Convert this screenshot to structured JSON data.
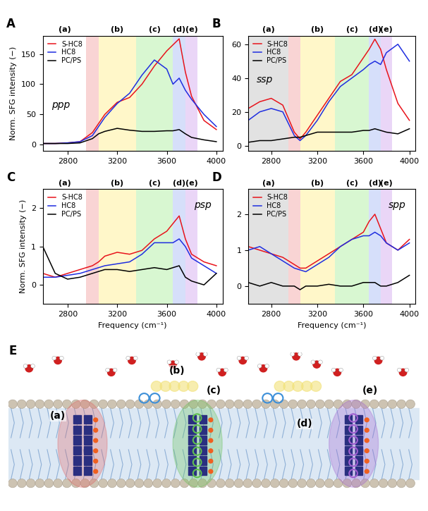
{
  "chart_data": [
    {
      "type": "line",
      "panel": "A",
      "annotation": "ppp",
      "ylabel": "Norm. SFG intensity (−)",
      "x": [
        2600,
        2700,
        2800,
        2900,
        3000,
        3050,
        3100,
        3200,
        3300,
        3400,
        3500,
        3600,
        3650,
        3700,
        3750,
        3800,
        3900,
        4000
      ],
      "series": [
        {
          "name": "S-HC8",
          "color": "#e8141c",
          "values": [
            2,
            2,
            3,
            5,
            20,
            35,
            50,
            70,
            78,
            100,
            130,
            155,
            165,
            175,
            120,
            80,
            40,
            25
          ]
        },
        {
          "name": "HC8",
          "color": "#1f2ee0",
          "values": [
            2,
            2,
            3,
            5,
            15,
            30,
            45,
            68,
            85,
            115,
            140,
            125,
            100,
            110,
            90,
            75,
            50,
            30
          ]
        },
        {
          "name": "PC/PS",
          "color": "#000000",
          "values": [
            2,
            2,
            2,
            3,
            10,
            18,
            22,
            27,
            24,
            22,
            22,
            23,
            23,
            25,
            18,
            12,
            8,
            5
          ]
        }
      ],
      "regions": [
        {
          "label": "(a)",
          "range": [
            2600,
            2950
          ]
        },
        {
          "range": [
            2950,
            3050
          ],
          "color": "#f6b8b8"
        },
        {
          "label": "(b)",
          "range": [
            3050,
            3350
          ],
          "color": "#fff3a6"
        },
        {
          "label": "(c)",
          "range": [
            3350,
            3650
          ],
          "color": "#bff2b3"
        },
        {
          "label": "(d)",
          "range": [
            3650,
            3750
          ],
          "color": "#bccbf8"
        },
        {
          "label": "(e)",
          "range": [
            3750,
            3850
          ],
          "color": "#dcbcf2"
        }
      ],
      "xlim": [
        2600,
        4050
      ],
      "xticks": [
        2800,
        3200,
        3600,
        4000
      ],
      "ylim": [
        -10,
        180
      ],
      "yticks": [
        0,
        50,
        100,
        150
      ],
      "legend": "upper left"
    },
    {
      "type": "line",
      "panel": "B",
      "annotation": "ssp",
      "x": [
        2600,
        2700,
        2800,
        2900,
        3000,
        3050,
        3100,
        3200,
        3300,
        3400,
        3500,
        3600,
        3650,
        3700,
        3750,
        3800,
        3900,
        4000
      ],
      "series": [
        {
          "name": "S-HC8",
          "color": "#e8141c",
          "values": [
            22,
            26,
            28,
            24,
            8,
            4,
            8,
            18,
            28,
            38,
            42,
            52,
            57,
            63,
            57,
            45,
            25,
            15
          ]
        },
        {
          "name": "HC8",
          "color": "#1f2ee0",
          "values": [
            15,
            20,
            22,
            20,
            6,
            3,
            6,
            15,
            26,
            35,
            40,
            45,
            48,
            50,
            48,
            55,
            60,
            50
          ]
        },
        {
          "name": "PC/PS",
          "color": "#000000",
          "values": [
            2,
            3,
            3,
            4,
            5,
            5,
            6,
            8,
            8,
            8,
            8,
            9,
            9,
            10,
            9,
            8,
            7,
            10
          ]
        }
      ],
      "regions": [
        {
          "label": "(a)",
          "range": [
            2600,
            2950
          ],
          "color": "#cfcfcf"
        },
        {
          "range": [
            2950,
            3050
          ],
          "color": "#f6b8b8"
        },
        {
          "label": "(b)",
          "range": [
            3050,
            3350
          ],
          "color": "#fff3a6"
        },
        {
          "label": "(c)",
          "range": [
            3350,
            3650
          ],
          "color": "#bff2b3"
        },
        {
          "label": "(d)",
          "range": [
            3650,
            3750
          ],
          "color": "#bccbf8"
        },
        {
          "label": "(e)",
          "range": [
            3750,
            3850
          ],
          "color": "#dcbcf2"
        }
      ],
      "xlim": [
        2600,
        4050
      ],
      "xticks": [
        2800,
        3200,
        3600,
        4000
      ],
      "ylim": [
        -3,
        65
      ],
      "yticks": [
        0,
        20,
        40,
        60
      ],
      "legend": "upper left"
    },
    {
      "type": "line",
      "panel": "C",
      "annotation": "psp",
      "ylabel": "Norm. SFG intensity (−)",
      "xlabel": "Frequency (cm⁻¹)",
      "x": [
        2600,
        2700,
        2800,
        2900,
        3000,
        3050,
        3100,
        3200,
        3300,
        3400,
        3500,
        3600,
        3650,
        3700,
        3750,
        3800,
        3900,
        4000
      ],
      "series": [
        {
          "name": "S-HC8",
          "color": "#e8141c",
          "values": [
            0.3,
            0.2,
            0.3,
            0.4,
            0.5,
            0.6,
            0.75,
            0.85,
            0.8,
            0.9,
            1.2,
            1.4,
            1.6,
            1.8,
            1.2,
            0.8,
            0.6,
            0.5
          ]
        },
        {
          "name": "HC8",
          "color": "#1f2ee0",
          "values": [
            0.2,
            0.2,
            0.25,
            0.3,
            0.4,
            0.45,
            0.5,
            0.55,
            0.6,
            0.8,
            1.1,
            1.1,
            1.1,
            1.2,
            1.0,
            0.7,
            0.5,
            0.3
          ]
        },
        {
          "name": "PC/PS",
          "color": "#000000",
          "values": [
            1.0,
            0.3,
            0.15,
            0.2,
            0.3,
            0.35,
            0.4,
            0.4,
            0.35,
            0.4,
            0.45,
            0.4,
            0.45,
            0.5,
            0.2,
            0.1,
            0.0,
            0.3
          ]
        }
      ],
      "regions": [
        {
          "label": "(a)",
          "range": [
            2600,
            2950
          ]
        },
        {
          "range": [
            2950,
            3050
          ],
          "color": "#f6b8b8"
        },
        {
          "label": "(b)",
          "range": [
            3050,
            3350
          ],
          "color": "#fff3a6"
        },
        {
          "label": "(c)",
          "range": [
            3350,
            3650
          ],
          "color": "#bff2b3"
        },
        {
          "label": "(d)",
          "range": [
            3650,
            3750
          ],
          "color": "#bccbf8"
        },
        {
          "label": "(e)",
          "range": [
            3750,
            3850
          ],
          "color": "#dcbcf2"
        }
      ],
      "xlim": [
        2600,
        4050
      ],
      "xticks": [
        2800,
        3200,
        3600,
        4000
      ],
      "ylim": [
        -0.5,
        2.5
      ],
      "yticks": [
        0,
        1,
        2
      ],
      "legend": "upper left"
    },
    {
      "type": "line",
      "panel": "D",
      "annotation": "spp",
      "xlabel": "Frequency (cm⁻¹)",
      "x": [
        2600,
        2700,
        2800,
        2900,
        3000,
        3050,
        3100,
        3200,
        3300,
        3400,
        3500,
        3600,
        3650,
        3700,
        3750,
        3800,
        3900,
        4000
      ],
      "series": [
        {
          "name": "S-HC8",
          "color": "#e8141c",
          "values": [
            1.1,
            1.0,
            0.9,
            0.8,
            0.6,
            0.5,
            0.5,
            0.7,
            0.9,
            1.1,
            1.3,
            1.5,
            1.8,
            2.0,
            1.6,
            1.2,
            1.0,
            1.3
          ]
        },
        {
          "name": "HC8",
          "color": "#1f2ee0",
          "values": [
            1.0,
            1.1,
            0.9,
            0.7,
            0.5,
            0.45,
            0.4,
            0.6,
            0.8,
            1.1,
            1.3,
            1.4,
            1.4,
            1.5,
            1.4,
            1.2,
            1.0,
            1.2
          ]
        },
        {
          "name": "PC/PS",
          "color": "#000000",
          "values": [
            0.1,
            0.0,
            0.1,
            0.0,
            0.0,
            -0.1,
            0.0,
            0.0,
            0.05,
            0.0,
            0.0,
            0.1,
            0.1,
            0.1,
            0.0,
            0.0,
            0.1,
            0.3
          ]
        }
      ],
      "regions": [
        {
          "label": "(a)",
          "range": [
            2600,
            2950
          ],
          "color": "#cfcfcf"
        },
        {
          "range": [
            2950,
            3050
          ],
          "color": "#f6b8b8"
        },
        {
          "label": "(b)",
          "range": [
            3050,
            3350
          ],
          "color": "#fff3a6"
        },
        {
          "label": "(c)",
          "range": [
            3350,
            3650
          ],
          "color": "#bff2b3"
        },
        {
          "label": "(d)",
          "range": [
            3650,
            3750
          ],
          "color": "#bccbf8"
        },
        {
          "label": "(e)",
          "range": [
            3750,
            3850
          ],
          "color": "#dcbcf2"
        }
      ],
      "xlim": [
        2600,
        4050
      ],
      "xticks": [
        2800,
        3200,
        3600,
        4000
      ],
      "ylim": [
        -0.5,
        2.7
      ],
      "yticks": [
        0,
        1,
        2
      ],
      "legend": "upper left"
    }
  ],
  "diagram": {
    "panel": "E",
    "labels": [
      "(a)",
      "(b)",
      "(c)",
      "(d)",
      "(e)"
    ]
  }
}
